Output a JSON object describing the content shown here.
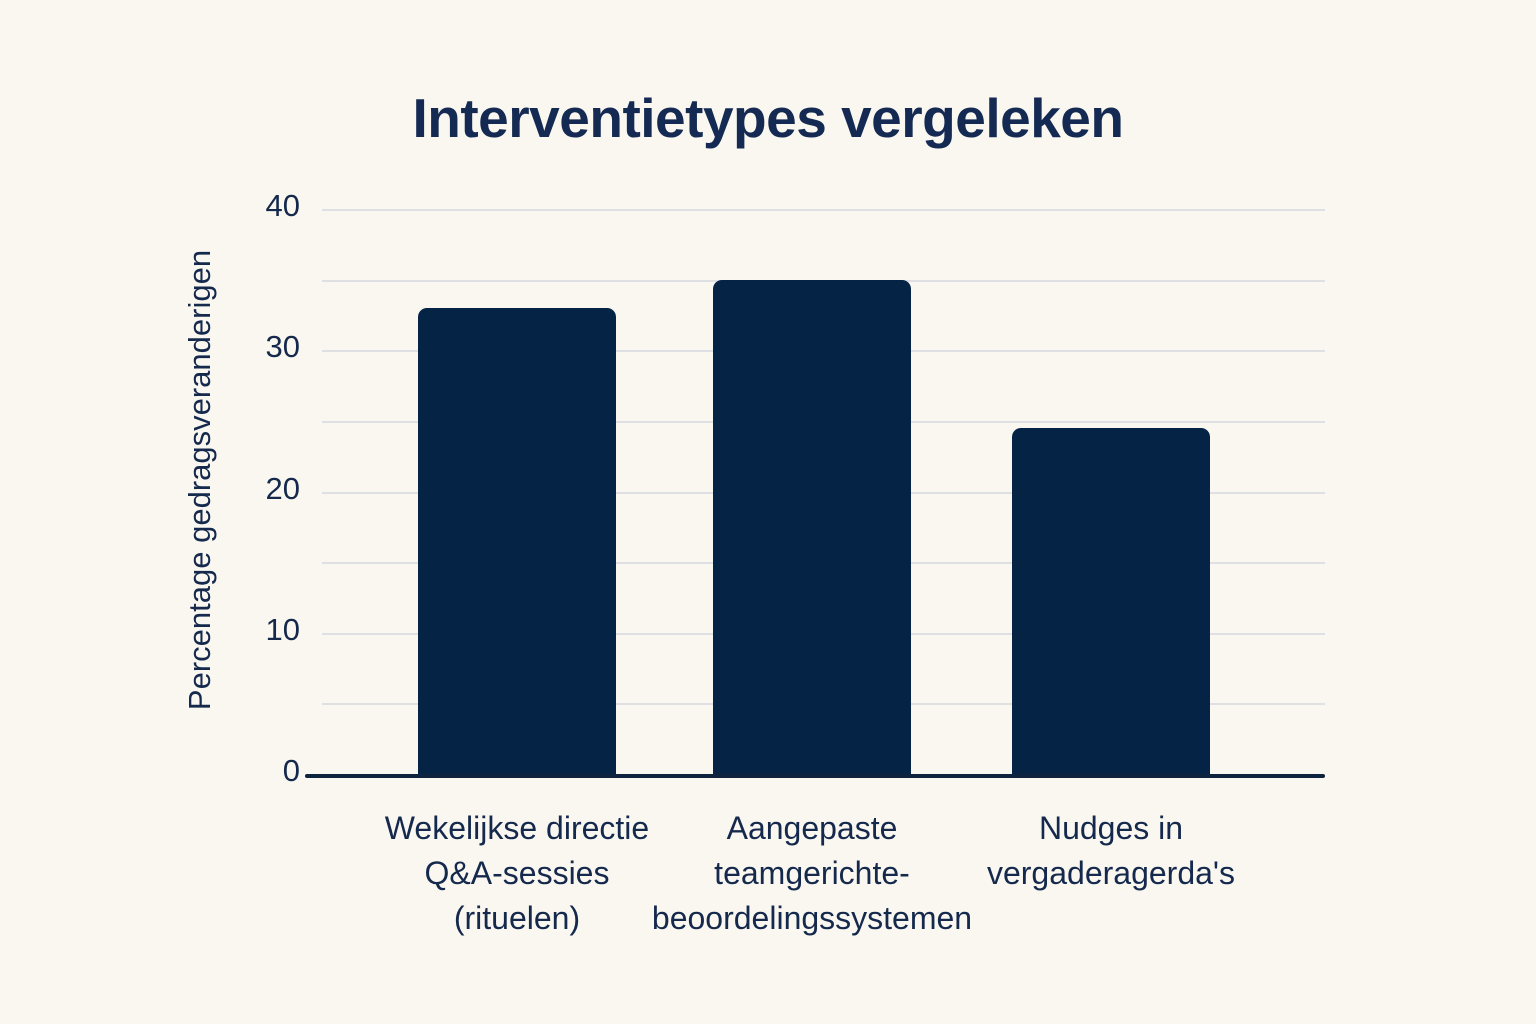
{
  "page": {
    "background_color": "#faf7f1"
  },
  "chart_data": {
    "type": "bar",
    "title": "Interventietypes vergeleken",
    "xlabel": "",
    "ylabel": "Percentage gedragsveranderigen",
    "categories": [
      "Wekelijkse directie\nQ&A-sessies\n(rituelen)",
      "Aangepaste\nteamgerichte-\nbeoordelingssystemen",
      "Nudges in\nvergaderagerda's"
    ],
    "values": [
      33,
      35,
      24.5
    ],
    "ylim": [
      0,
      40
    ],
    "yticks": [
      0,
      10,
      20,
      30,
      40
    ],
    "gridline_step": 5,
    "grid": true,
    "legend_position": "none",
    "colors": {
      "bar": "#052345",
      "title": "#142a52",
      "text": "#15294c",
      "gridline": "#dee0e3",
      "axis": "#0e2340",
      "background": "#faf7f1"
    }
  }
}
